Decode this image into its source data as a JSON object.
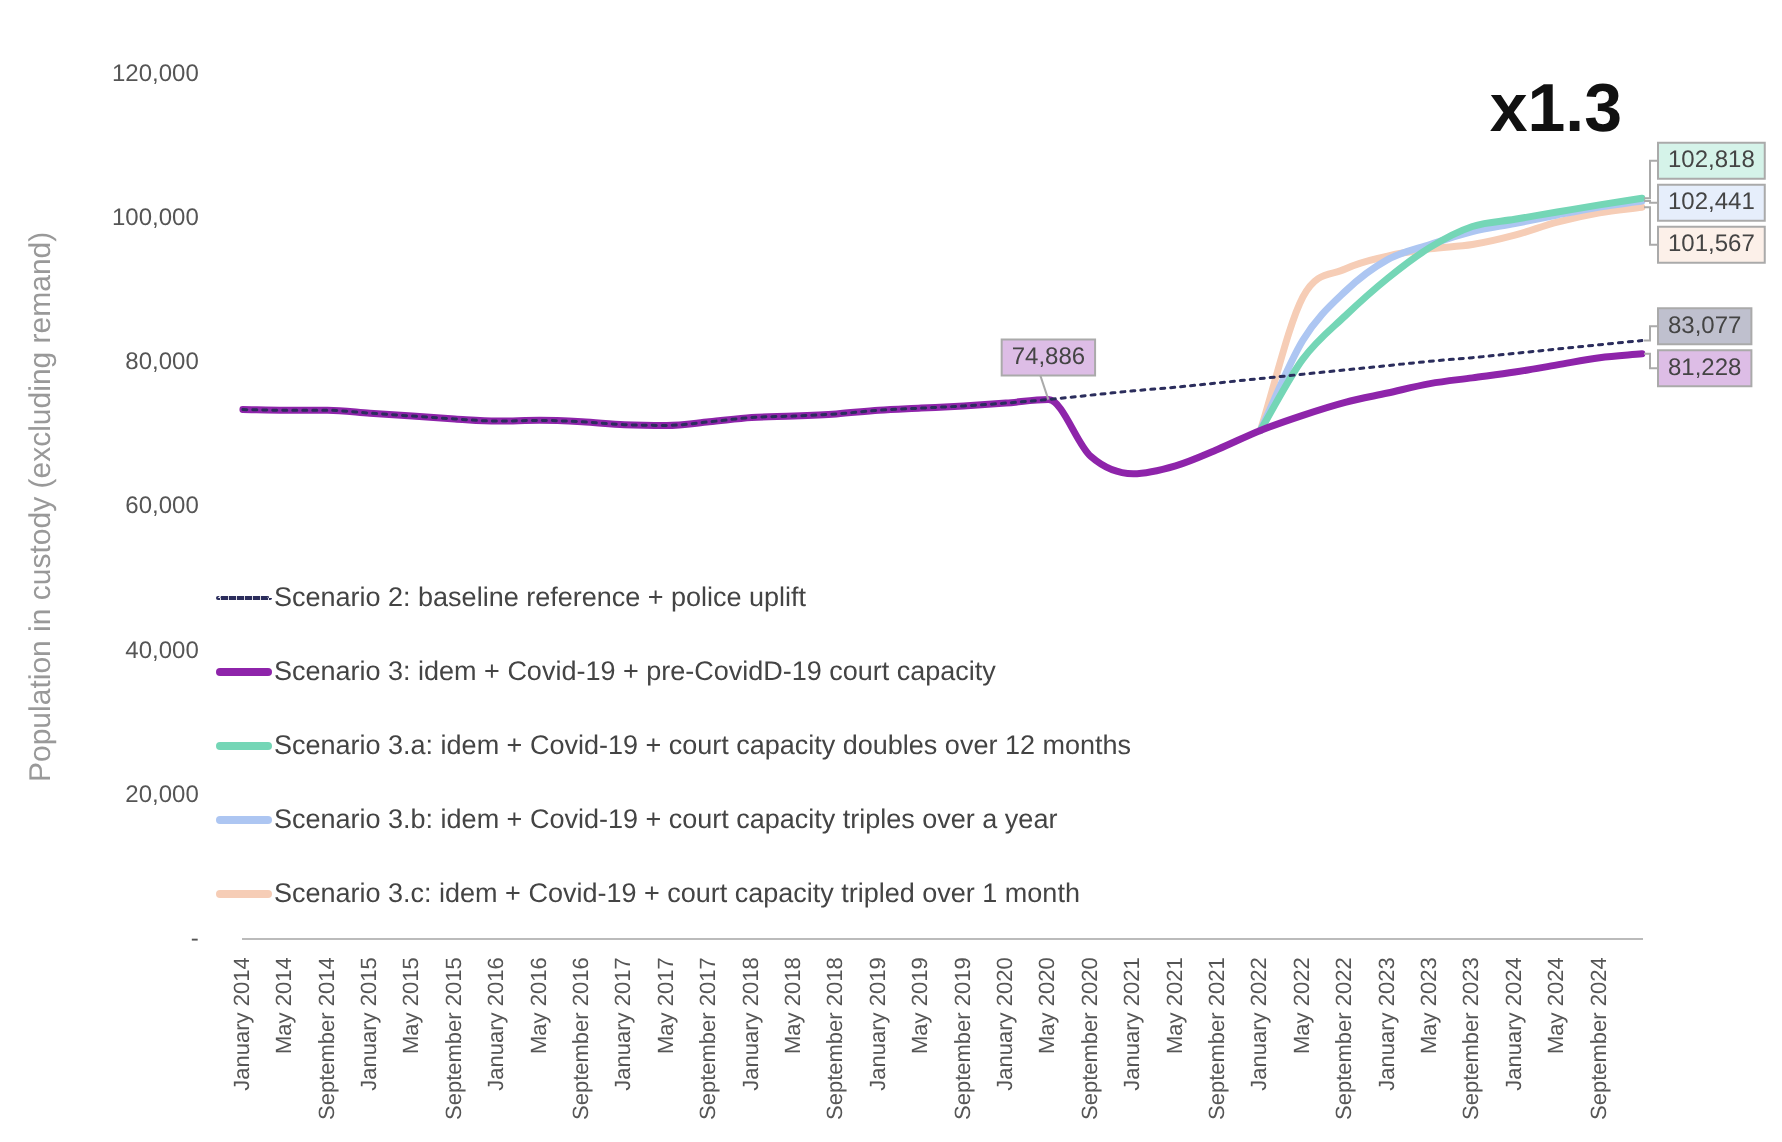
{
  "chart_data": {
    "type": "line",
    "ylabel": "Population in custody (excluding remand)",
    "categories": [
      "January 2014",
      "May 2014",
      "September 2014",
      "January 2015",
      "May 2015",
      "September 2015",
      "January 2016",
      "May 2016",
      "September 2016",
      "January 2017",
      "May 2017",
      "September 2017",
      "January 2018",
      "May 2018",
      "September 2018",
      "January 2019",
      "May 2019",
      "September 2019",
      "January 2020",
      "May 2020",
      "September 2020",
      "January 2021",
      "May 2021",
      "September 2021",
      "January 2022",
      "May 2022",
      "September 2022",
      "January 2023",
      "May 2023",
      "September 2023",
      "January 2024",
      "May 2024",
      "September 2024",
      null
    ],
    "series": [
      {
        "name": "Scenario 2: baseline reference + police uplift",
        "color": "#2b2d5c",
        "line_style": "dotted",
        "values": [
          73500,
          73400,
          73400,
          73000,
          72600,
          72200,
          71900,
          72000,
          71800,
          71400,
          71300,
          71800,
          72400,
          72600,
          72900,
          73400,
          73700,
          74000,
          74400,
          74900,
          75500,
          76100,
          76600,
          77200,
          77800,
          78400,
          79000,
          79600,
          80200,
          80700,
          81300,
          81900,
          82500,
          83077
        ],
        "value_labels": [
          null,
          null,
          null,
          null,
          null,
          null,
          null,
          null,
          null,
          null,
          null,
          null,
          null,
          null,
          null,
          null,
          null,
          null,
          null,
          null,
          null,
          null,
          null,
          null,
          null,
          null,
          null,
          null,
          null,
          null,
          null,
          null,
          null,
          "83,077"
        ]
      },
      {
        "name": "Scenario 3: idem + Covid-19 + pre-CovidD-19 court capacity",
        "color": "#8e24aa",
        "line_style": "solid",
        "values": [
          73500,
          73400,
          73400,
          73000,
          72600,
          72200,
          71900,
          72000,
          71800,
          71400,
          71300,
          71800,
          72400,
          72600,
          72900,
          73400,
          73700,
          74000,
          74400,
          74886,
          67000,
          64600,
          65700,
          68000,
          70600,
          72700,
          74500,
          75800,
          77100,
          77900,
          78700,
          79700,
          80700,
          81228
        ],
        "value_labels": [
          null,
          null,
          null,
          null,
          null,
          null,
          null,
          null,
          null,
          null,
          null,
          null,
          null,
          null,
          null,
          null,
          null,
          null,
          null,
          "74,886",
          null,
          null,
          null,
          null,
          null,
          null,
          null,
          null,
          null,
          null,
          null,
          null,
          null,
          "81,228"
        ]
      },
      {
        "name": "Scenario 3.a: idem + Covid-19 + court capacity doubles over 12 months",
        "color": "#74d6b6",
        "line_style": "solid",
        "values": [
          null,
          null,
          null,
          null,
          null,
          null,
          null,
          null,
          null,
          null,
          null,
          null,
          null,
          null,
          null,
          null,
          null,
          null,
          null,
          null,
          null,
          null,
          null,
          null,
          70600,
          80500,
          86500,
          91700,
          96000,
          98900,
          99900,
          100900,
          101900,
          102818
        ],
        "value_labels": [
          null,
          null,
          null,
          null,
          null,
          null,
          null,
          null,
          null,
          null,
          null,
          null,
          null,
          null,
          null,
          null,
          null,
          null,
          null,
          null,
          null,
          null,
          null,
          null,
          null,
          null,
          null,
          null,
          null,
          null,
          null,
          null,
          null,
          "102,818"
        ]
      },
      {
        "name": "Scenario 3.b: idem + Covid-19 + court capacity triples over a year",
        "color": "#adc6f2",
        "line_style": "solid",
        "values": [
          null,
          null,
          null,
          null,
          null,
          null,
          null,
          null,
          null,
          null,
          null,
          null,
          null,
          null,
          null,
          null,
          null,
          null,
          null,
          null,
          null,
          null,
          null,
          null,
          70600,
          83100,
          89900,
          94300,
          96400,
          98200,
          99300,
          100500,
          101600,
          102441
        ],
        "value_labels": [
          null,
          null,
          null,
          null,
          null,
          null,
          null,
          null,
          null,
          null,
          null,
          null,
          null,
          null,
          null,
          null,
          null,
          null,
          null,
          null,
          null,
          null,
          null,
          null,
          null,
          null,
          null,
          null,
          null,
          null,
          null,
          null,
          null,
          "102,441"
        ]
      },
      {
        "name": "Scenario 3.c: idem + Covid-19 + court capacity tripled over 1 month",
        "color": "#f6cdb6",
        "line_style": "solid",
        "values": [
          null,
          null,
          null,
          null,
          null,
          null,
          null,
          null,
          null,
          null,
          null,
          null,
          null,
          null,
          null,
          null,
          null,
          null,
          null,
          null,
          null,
          null,
          null,
          null,
          70600,
          89100,
          93000,
          94800,
          95800,
          96400,
          97700,
          99500,
          100800,
          101567
        ],
        "value_labels": [
          null,
          null,
          null,
          null,
          null,
          null,
          null,
          null,
          null,
          null,
          null,
          null,
          null,
          null,
          null,
          null,
          null,
          null,
          null,
          null,
          null,
          null,
          null,
          null,
          null,
          null,
          null,
          null,
          null,
          null,
          null,
          null,
          null,
          "101,567"
        ]
      }
    ],
    "ylim": [
      0,
      120000
    ],
    "yticks": [
      {
        "value": 0,
        "label": "-"
      },
      {
        "value": 20000,
        "label": "20,000"
      },
      {
        "value": 40000,
        "label": "40,000"
      },
      {
        "value": 60000,
        "label": "60,000"
      },
      {
        "value": 80000,
        "label": "80,000"
      },
      {
        "value": 100000,
        "label": "100,000"
      },
      {
        "value": 120000,
        "label": "120,000"
      }
    ],
    "annotations": [
      "x1.3"
    ],
    "grid": false,
    "legend": "bottom left",
    "marker": "none"
  }
}
